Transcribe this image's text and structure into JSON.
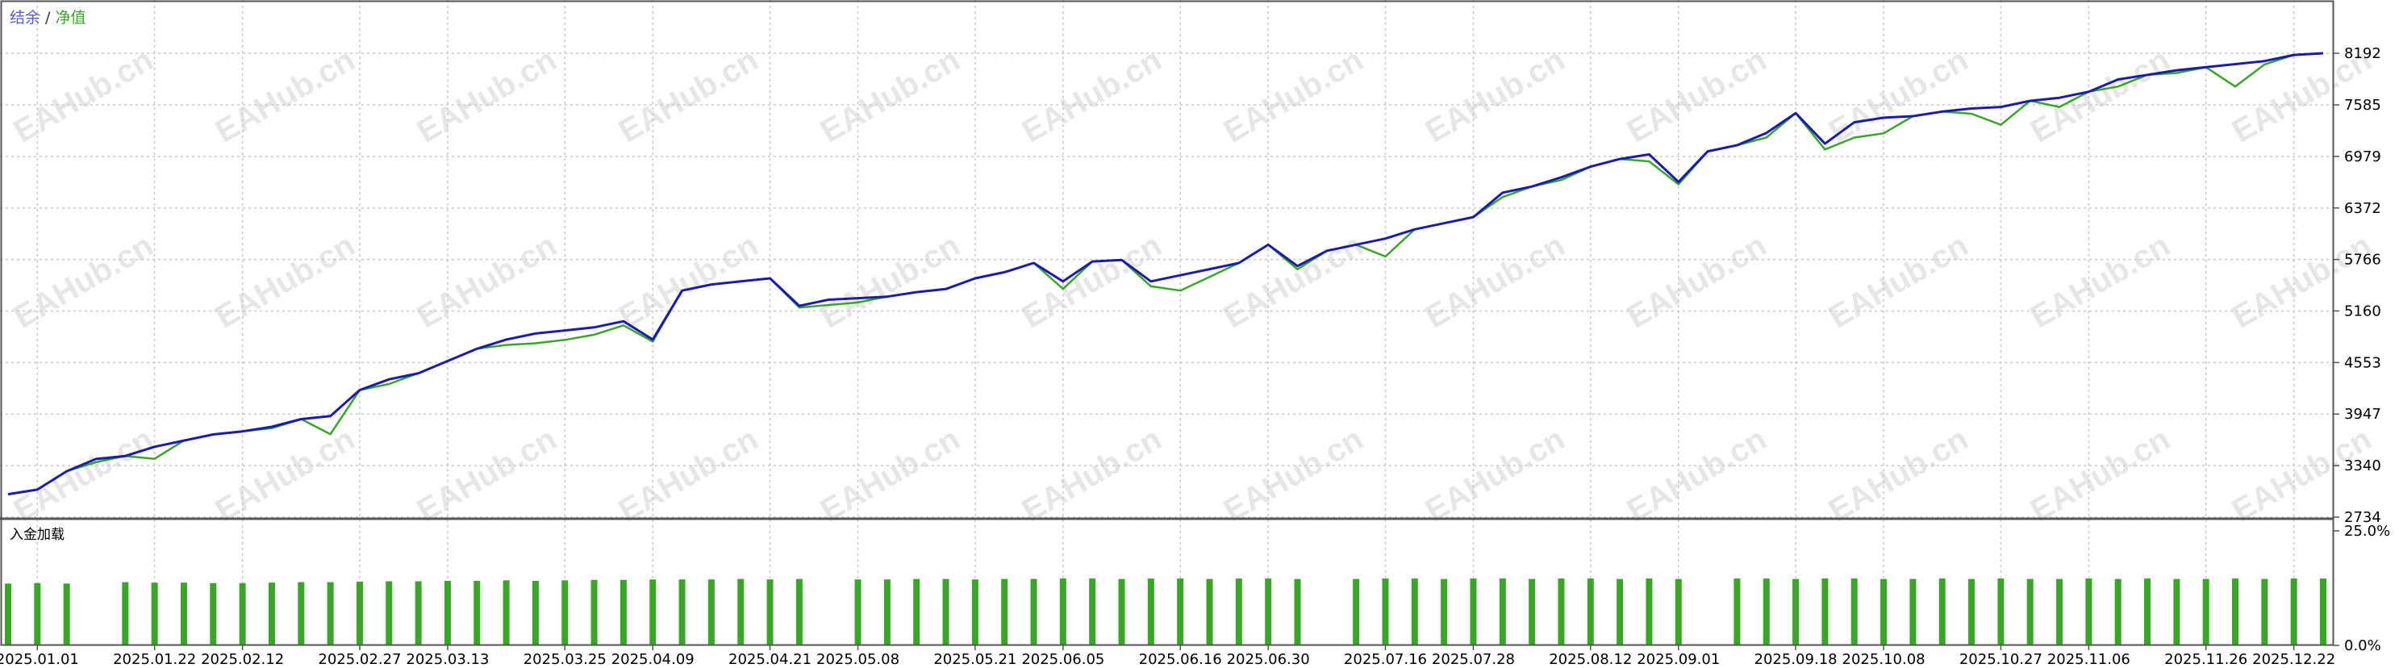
{
  "watermark": "EAHub.cn",
  "chart_data": [
    {
      "type": "line",
      "legend_separator": "/",
      "ylim": [
        2734,
        8724
      ],
      "yticks": [
        2734,
        3340,
        3947,
        4553,
        5160,
        5766,
        6372,
        6979,
        7585,
        8192
      ],
      "grid": true,
      "series": [
        {
          "name": "净值",
          "color": "#3aa628",
          "values": [
            3004,
            3058,
            3274,
            3380,
            3454,
            3420,
            3635,
            3707,
            3743,
            3780,
            3887,
            3710,
            4229,
            4300,
            4427,
            4571,
            4715,
            4760,
            4780,
            4820,
            4880,
            4990,
            4800,
            5400,
            5472,
            5508,
            5544,
            5200,
            5230,
            5260,
            5328,
            5382,
            5418,
            5544,
            5616,
            5724,
            5420,
            5742,
            5760,
            5450,
            5400,
            5560,
            5724,
            5940,
            5650,
            5868,
            5940,
            5800,
            6120,
            6192,
            6264,
            6500,
            6624,
            6700,
            6858,
            6948,
            6920,
            6650,
            7038,
            7110,
            7200,
            7488,
            7060,
            7200,
            7250,
            7452,
            7506,
            7480,
            7350,
            7632,
            7560,
            7740,
            7800,
            7938,
            7960,
            8028,
            7800,
            8060,
            8172,
            8192
          ]
        },
        {
          "name": "结余",
          "color": "#1c1caa",
          "values": [
            3004,
            3058,
            3274,
            3418,
            3454,
            3562,
            3635,
            3707,
            3743,
            3797,
            3887,
            3923,
            4229,
            4355,
            4427,
            4571,
            4715,
            4823,
            4895,
            4931,
            4967,
            5039,
            4823,
            5400,
            5472,
            5508,
            5544,
            5220,
            5292,
            5310,
            5328,
            5382,
            5418,
            5544,
            5616,
            5724,
            5508,
            5742,
            5760,
            5508,
            5580,
            5652,
            5724,
            5940,
            5688,
            5868,
            5940,
            6012,
            6120,
            6192,
            6264,
            6552,
            6624,
            6732,
            6858,
            6948,
            7002,
            6678,
            7038,
            7110,
            7254,
            7488,
            7128,
            7380,
            7434,
            7452,
            7506,
            7542,
            7560,
            7632,
            7668,
            7740,
            7884,
            7938,
            7992,
            8028,
            8064,
            8100,
            8172,
            8192
          ]
        }
      ]
    },
    {
      "type": "bar",
      "title": "入金加载",
      "color": "#3aa628",
      "ylim": [
        0,
        25
      ],
      "yticks": [
        {
          "value": 0,
          "label": "0.0%"
        },
        {
          "value": 25,
          "label": "25.0%"
        }
      ],
      "categories": [
        null,
        "2025.01.01",
        null,
        null,
        null,
        "2025.01.22",
        null,
        null,
        "2025.02.12",
        null,
        null,
        null,
        "2025.02.27",
        null,
        null,
        "2025.03.13",
        null,
        null,
        null,
        "2025.03.25",
        null,
        null,
        "2025.04.09",
        null,
        null,
        null,
        "2025.04.21",
        null,
        null,
        "2025.05.08",
        null,
        null,
        null,
        "2025.05.21",
        null,
        null,
        "2025.06.05",
        null,
        null,
        null,
        "2025.06.16",
        null,
        null,
        "2025.06.30",
        null,
        null,
        null,
        "2025.07.16",
        null,
        null,
        "2025.07.28",
        null,
        null,
        null,
        "2025.08.12",
        null,
        null,
        "2025.09.01",
        null,
        null,
        null,
        "2025.09.18",
        null,
        null,
        "2025.10.08",
        null,
        null,
        null,
        "2025.10.27",
        null,
        null,
        "2025.11.06",
        null,
        null,
        null,
        "2025.11.26",
        null,
        null,
        "2025.12.22",
        null
      ],
      "values": [
        13.5,
        13.6,
        13.5,
        null,
        13.8,
        13.7,
        13.7,
        13.6,
        13.6,
        13.7,
        13.8,
        13.8,
        13.9,
        14.0,
        14.0,
        14.1,
        14.1,
        14.2,
        14.1,
        14.2,
        14.3,
        14.3,
        14.4,
        14.4,
        14.4,
        14.5,
        14.4,
        14.5,
        null,
        14.4,
        14.4,
        14.5,
        14.5,
        14.4,
        14.5,
        14.5,
        14.6,
        14.6,
        14.5,
        14.6,
        14.6,
        14.5,
        14.6,
        14.6,
        14.5,
        null,
        14.5,
        14.6,
        14.6,
        14.5,
        14.6,
        14.6,
        14.5,
        14.6,
        14.6,
        14.5,
        14.6,
        14.5,
        null,
        14.6,
        14.6,
        14.5,
        14.6,
        14.6,
        14.5,
        14.5,
        14.6,
        14.5,
        14.6,
        14.5,
        14.5,
        14.6,
        14.5,
        14.6,
        14.5,
        14.5,
        14.6,
        14.5,
        14.6,
        14.6
      ]
    }
  ]
}
